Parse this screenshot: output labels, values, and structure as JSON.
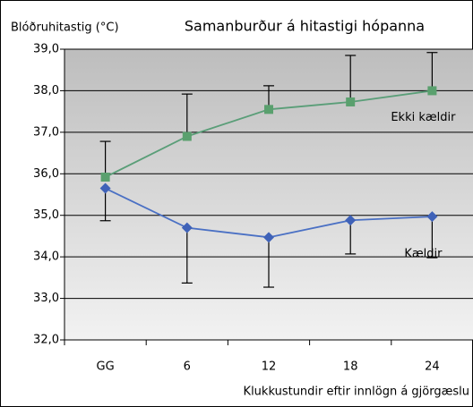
{
  "chart_data": {
    "type": "line",
    "title": "Samanburður á hitastigi hópanna",
    "y_label": "Blóðruhitastig (°C)",
    "x_label": "Klukkustundir eftir innlögn á gjörgæslu",
    "categories": [
      "GG",
      "6",
      "12",
      "18",
      "24"
    ],
    "series": [
      {
        "name": "Ekki kældir",
        "color": "#5a9e78",
        "marker_color": "#5aa06e",
        "values": [
          35.92,
          36.9,
          37.55,
          37.73,
          38.0
        ],
        "error": [
          0.86,
          1.02,
          0.57,
          1.12,
          0.92
        ],
        "error_side": "up"
      },
      {
        "name": "Kældir",
        "color": "#4a70c4",
        "marker_color": "#3f62b8",
        "values": [
          35.65,
          34.7,
          34.47,
          34.88,
          34.97
        ],
        "error": [
          0.78,
          1.33,
          1.2,
          0.81,
          0.99
        ],
        "error_side": "down"
      }
    ],
    "ylim": [
      32,
      39
    ],
    "yticks": [
      {
        "value": 32,
        "label": "32,0"
      },
      {
        "value": 33,
        "label": "33,0"
      },
      {
        "value": 34,
        "label": "34,0"
      },
      {
        "value": 35,
        "label": "35,0"
      },
      {
        "value": 36,
        "label": "36,0"
      },
      {
        "value": 37,
        "label": "37,0"
      },
      {
        "value": 38,
        "label": "38,0"
      },
      {
        "value": 39,
        "label": "39,0"
      }
    ],
    "grid": true
  }
}
